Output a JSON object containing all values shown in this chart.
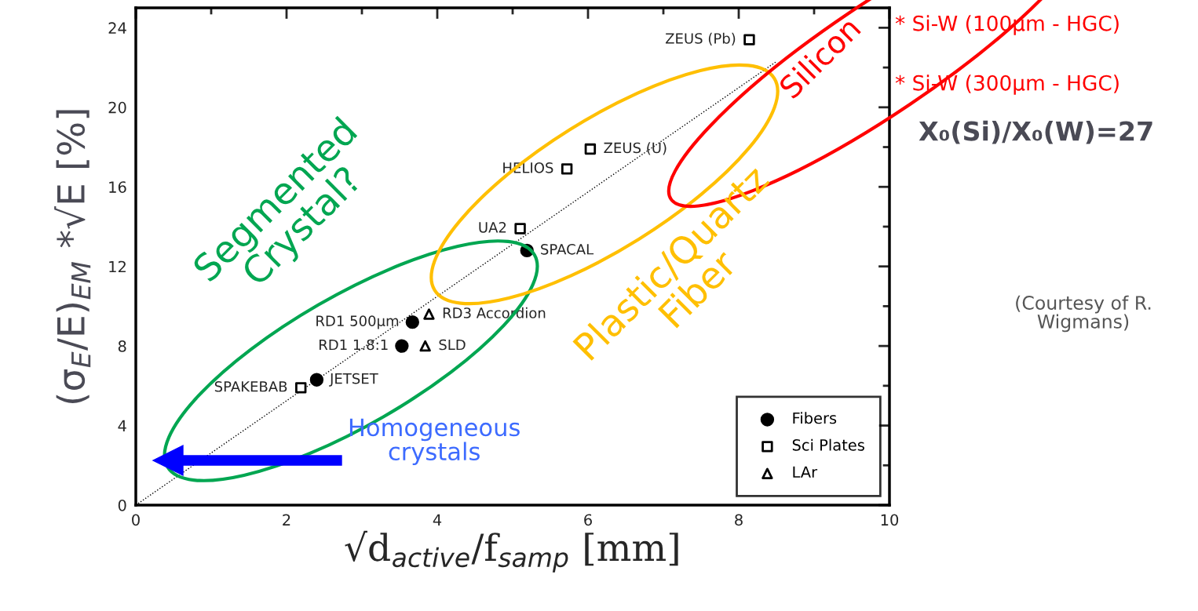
{
  "chart_data": {
    "type": "scatter",
    "xlabel": "√d$_{active}$/f$_{samp}$ [mm]",
    "ylabel": "(σ$_{E}$/E)$_{EM}$ *√E [%]",
    "xlim": [
      0,
      10
    ],
    "ylim": [
      0,
      25
    ],
    "xticks": [
      0,
      {
        "value": 1,
        "label": null
      },
      2,
      {
        "value": 3,
        "label": null
      },
      4,
      {
        "value": 5,
        "label": null
      },
      6,
      {
        "value": 7,
        "label": null
      },
      8,
      {
        "value": 9,
        "label": null
      },
      10
    ],
    "yticks": [
      0,
      {
        "value": 2,
        "label": null
      },
      4,
      {
        "value": 6,
        "label": null
      },
      8,
      {
        "value": 10,
        "label": null
      },
      12,
      {
        "value": 14,
        "label": null
      },
      16,
      {
        "value": 18,
        "label": null
      },
      20,
      {
        "value": 22,
        "label": null
      },
      24
    ],
    "grid": false,
    "legend": "bottom right",
    "series": [
      {
        "name": "Fibers",
        "color": "#000000",
        "marker": "circle",
        "x": [
          5.19,
          3.67,
          3.53,
          2.4
        ],
        "values": [
          12.8,
          9.2,
          8.0,
          6.3
        ]
      },
      {
        "name": "Sci Plates",
        "color": "#000000",
        "marker": "square",
        "x": [
          8.14,
          6.03,
          5.72,
          5.1,
          2.19
        ],
        "values": [
          23.4,
          17.9,
          16.9,
          13.9,
          5.9
        ]
      },
      {
        "name": "LAr",
        "color": "#000000",
        "marker": "triangle",
        "x": [
          3.89,
          3.84
        ],
        "values": [
          9.6,
          8.0
        ]
      },
      {
        "type": "line",
        "color": "#000000",
        "line_style": "dotted",
        "marker": "none",
        "x": [
          0,
          8.5
        ],
        "values": [
          0,
          22.3
        ]
      }
    ],
    "annotations": [
      "Segmented\nCrystal?",
      "Plastic/Quartz\nFiber",
      "Silicon",
      "Homogeneous\ncrystals",
      "* Si-W (100µm - HGC)",
      "* Si-W (300µm - HGC)",
      "X₀(Si)/X₀(W)=27",
      "(Courtesy of R.\nWigmans)",
      {
        "text": "SPACAL",
        "x": 5.19,
        "y": 12.8
      },
      {
        "text": "RD1 500µm",
        "x": 3.67,
        "y": 9.2
      },
      {
        "text": "RD1 1.8:1",
        "x": 3.53,
        "y": 8.0
      },
      {
        "text": "JETSET",
        "x": 2.4,
        "y": 6.3
      },
      {
        "text": "ZEUS (Pb)",
        "x": 8.14,
        "y": 23.4
      },
      {
        "text": "ZEUS (U)",
        "x": 6.03,
        "y": 17.9
      },
      {
        "text": "HELIOS",
        "x": 5.72,
        "y": 16.9
      },
      {
        "text": "UA2",
        "x": 5.1,
        "y": 13.9
      },
      {
        "text": "SPAKEBAB",
        "x": 2.19,
        "y": 5.9
      },
      {
        "text": "RD3 Accordion",
        "x": 3.89,
        "y": 9.6
      },
      {
        "text": "SLD",
        "x": 3.84,
        "y": 8.0
      }
    ]
  }
}
